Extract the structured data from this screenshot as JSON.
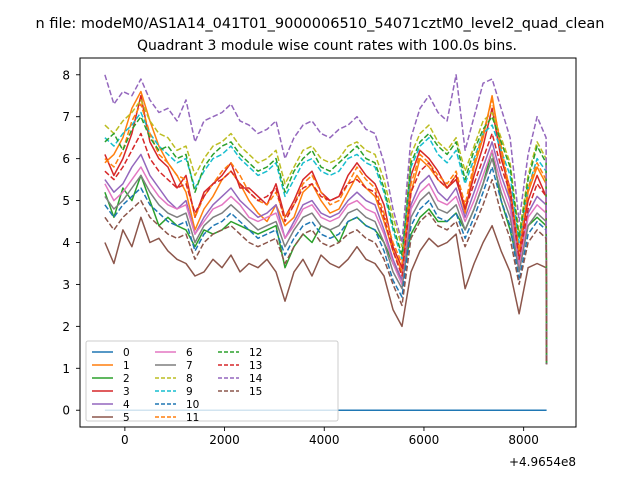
{
  "chart_data": {
    "type": "line",
    "suptitle": "n file: modeM0/AS1A14_041T01_9000006510_54071cztM0_level2_quad_clean",
    "title": "Quadrant 3 module wise count rates with 100.0s bins.",
    "xlabel": "",
    "ylabel": "",
    "x_offset_label": "+4.9654e8",
    "xlim": [
      -900,
      9050
    ],
    "ylim": [
      -0.4,
      8.4
    ],
    "xticks": [
      0,
      2000,
      4000,
      6000,
      8000
    ],
    "yticks": [
      0,
      1,
      2,
      3,
      4,
      5,
      6,
      7,
      8
    ],
    "x_range": [
      -400,
      8450
    ],
    "bin_seconds": 100,
    "grid": false,
    "legend_position": "lower-left",
    "legend_columns": 4,
    "series": [
      {
        "name": "0",
        "color": "#1f77b4",
        "dash": "solid",
        "values": [
          0,
          0,
          0,
          0,
          0,
          0,
          0,
          0,
          0,
          0,
          0,
          0,
          0,
          0,
          0,
          0,
          0,
          0,
          0,
          0,
          0,
          0,
          0,
          0,
          0,
          0,
          0,
          0,
          0,
          0,
          0,
          0,
          0,
          0,
          0,
          0,
          0,
          0,
          0,
          0,
          0,
          0,
          0,
          0,
          0,
          0,
          0,
          0,
          0,
          0
        ]
      },
      {
        "name": "1",
        "color": "#ff7f0e",
        "dash": "solid",
        "values": [
          5.9,
          6.1,
          6.5,
          7.2,
          7.6,
          6.9,
          6.3,
          5.9,
          5.6,
          5.2,
          4.3,
          4.8,
          5.1,
          5.5,
          5.7,
          5.4,
          5.0,
          4.7,
          4.5,
          4.9,
          4.4,
          4.6,
          5.2,
          5.4,
          5.0,
          4.7,
          4.8,
          5.2,
          5.6,
          5.3,
          5.1,
          4.5,
          3.8,
          3.3,
          5.2,
          6.0,
          5.8,
          5.5,
          5.3,
          5.6,
          4.7,
          5.8,
          6.5,
          7.5,
          6.2,
          5.0,
          3.6,
          5.2,
          5.8,
          5.4
        ]
      },
      {
        "name": "2",
        "color": "#2ca02c",
        "dash": "solid",
        "values": [
          5.2,
          4.6,
          5.3,
          5.0,
          5.6,
          5.0,
          4.4,
          4.6,
          4.4,
          4.3,
          3.9,
          4.3,
          4.2,
          4.3,
          4.5,
          4.4,
          4.3,
          4.2,
          4.3,
          4.4,
          3.4,
          3.9,
          4.2,
          4.0,
          4.4,
          4.3,
          4.0,
          4.5,
          4.6,
          4.4,
          4.3,
          4.0,
          3.5,
          3.1,
          4.2,
          4.6,
          4.8,
          4.5,
          4.5,
          4.7,
          4.3,
          4.8,
          5.4,
          6.2,
          5.0,
          4.3,
          3.4,
          4.4,
          4.6,
          4.4
        ]
      },
      {
        "name": "3",
        "color": "#d62728",
        "dash": "solid",
        "values": [
          6.1,
          5.6,
          6.0,
          6.6,
          7.5,
          6.4,
          6.0,
          5.8,
          5.3,
          5.6,
          4.6,
          5.2,
          5.4,
          5.6,
          5.9,
          5.3,
          5.3,
          5.1,
          4.9,
          5.4,
          4.6,
          5.0,
          5.5,
          5.7,
          5.2,
          5.0,
          5.1,
          5.6,
          5.9,
          5.6,
          5.4,
          4.9,
          3.9,
          3.4,
          5.6,
          6.2,
          6.0,
          5.7,
          5.3,
          5.5,
          4.8,
          5.6,
          6.3,
          7.2,
          6.0,
          5.3,
          3.8,
          5.0,
          5.6,
          5.1
        ]
      },
      {
        "name": "4",
        "color": "#9467bd",
        "dash": "solid",
        "values": [
          5.5,
          5.2,
          5.4,
          5.8,
          6.1,
          5.6,
          5.3,
          5.0,
          4.8,
          5.0,
          4.2,
          4.6,
          4.9,
          5.1,
          5.3,
          5.0,
          4.8,
          4.6,
          4.7,
          4.9,
          4.1,
          4.5,
          4.9,
          5.0,
          4.7,
          4.6,
          4.7,
          5.0,
          5.2,
          5.0,
          4.9,
          4.3,
          3.6,
          3.1,
          4.9,
          5.4,
          5.6,
          5.2,
          5.0,
          5.3,
          4.6,
          5.2,
          5.8,
          6.4,
          5.6,
          5.0,
          3.5,
          4.7,
          5.1,
          4.9
        ]
      },
      {
        "name": "5",
        "color": "#8c564b",
        "dash": "solid",
        "values": [
          4.0,
          3.5,
          4.3,
          3.9,
          4.6,
          4.0,
          4.1,
          3.8,
          3.6,
          3.5,
          3.2,
          3.3,
          3.6,
          3.4,
          3.7,
          3.3,
          3.5,
          3.4,
          3.6,
          3.3,
          2.6,
          3.3,
          3.6,
          3.2,
          3.7,
          3.5,
          3.4,
          3.6,
          3.9,
          3.6,
          3.5,
          3.2,
          2.4,
          2.0,
          3.3,
          3.8,
          4.1,
          3.9,
          4.0,
          4.2,
          2.9,
          3.5,
          4.0,
          4.4,
          3.8,
          3.3,
          2.3,
          3.4,
          3.5,
          3.4
        ]
      },
      {
        "name": "6",
        "color": "#e377c2",
        "dash": "solid",
        "values": [
          5.4,
          5.0,
          5.2,
          5.5,
          5.8,
          5.4,
          5.1,
          4.9,
          4.8,
          4.9,
          4.2,
          4.5,
          4.8,
          4.9,
          5.1,
          4.9,
          4.6,
          4.5,
          4.6,
          4.7,
          4.1,
          4.4,
          4.8,
          4.9,
          4.6,
          4.5,
          4.6,
          4.9,
          5.0,
          4.8,
          4.7,
          4.2,
          3.5,
          3.0,
          4.8,
          5.2,
          5.4,
          5.0,
          4.9,
          5.1,
          4.5,
          5.0,
          5.6,
          6.2,
          5.4,
          4.8,
          3.4,
          4.6,
          4.9,
          4.7
        ]
      },
      {
        "name": "7",
        "color": "#7f7f7f",
        "dash": "solid",
        "values": [
          5.1,
          4.8,
          5.0,
          5.3,
          5.6,
          5.2,
          4.9,
          4.7,
          4.6,
          4.7,
          4.0,
          4.4,
          4.6,
          4.7,
          4.9,
          4.7,
          4.5,
          4.3,
          4.4,
          4.5,
          3.9,
          4.3,
          4.6,
          4.7,
          4.4,
          4.3,
          4.4,
          4.7,
          4.8,
          4.6,
          4.5,
          4.0,
          3.3,
          2.9,
          4.6,
          5.0,
          5.2,
          4.8,
          4.7,
          4.9,
          4.3,
          4.8,
          5.4,
          6.0,
          5.2,
          4.6,
          3.3,
          4.4,
          4.7,
          4.5
        ]
      },
      {
        "name": "8",
        "color": "#bcbd22",
        "dash": "dashed",
        "values": [
          6.8,
          6.6,
          6.9,
          7.1,
          7.4,
          6.9,
          6.6,
          6.5,
          6.2,
          6.3,
          5.6,
          6.0,
          6.3,
          6.4,
          6.6,
          6.3,
          6.1,
          5.9,
          6.0,
          6.2,
          5.4,
          5.8,
          6.2,
          6.3,
          6.0,
          5.9,
          6.0,
          6.3,
          6.4,
          6.2,
          6.1,
          5.5,
          4.6,
          3.9,
          6.1,
          6.6,
          6.8,
          6.4,
          6.2,
          6.5,
          5.7,
          6.3,
          6.9,
          7.1,
          6.5,
          5.9,
          4.2,
          5.6,
          6.4,
          6.0
        ]
      },
      {
        "name": "9",
        "color": "#17becf",
        "dash": "dashed",
        "values": [
          6.5,
          6.3,
          6.6,
          6.8,
          7.1,
          6.6,
          6.3,
          6.1,
          5.9,
          6.0,
          5.3,
          5.7,
          6.0,
          6.1,
          6.3,
          6.0,
          5.8,
          5.6,
          5.7,
          5.9,
          5.1,
          5.5,
          5.9,
          6.0,
          5.7,
          5.6,
          5.7,
          6.0,
          6.1,
          5.9,
          5.8,
          5.2,
          4.3,
          3.6,
          5.8,
          6.3,
          6.5,
          6.1,
          5.9,
          6.2,
          5.4,
          6.0,
          6.6,
          6.8,
          6.2,
          5.6,
          4.0,
          5.3,
          6.0,
          5.7
        ]
      },
      {
        "name": "10",
        "color": "#1f77b4",
        "dash": "dashed",
        "values": [
          4.9,
          4.6,
          4.9,
          5.1,
          5.3,
          4.9,
          4.7,
          4.5,
          4.4,
          4.5,
          3.8,
          4.2,
          4.4,
          4.5,
          4.7,
          4.5,
          4.3,
          4.1,
          4.2,
          4.3,
          3.7,
          4.1,
          4.4,
          4.5,
          4.2,
          4.1,
          4.2,
          4.5,
          4.6,
          4.4,
          4.3,
          3.8,
          3.1,
          2.7,
          4.4,
          4.8,
          5.0,
          4.6,
          4.5,
          4.7,
          4.1,
          4.6,
          5.2,
          5.8,
          5.0,
          4.4,
          3.1,
          4.2,
          4.5,
          4.3
        ]
      },
      {
        "name": "11",
        "color": "#ff7f0e",
        "dash": "dashed",
        "values": [
          6.0,
          5.8,
          6.2,
          6.9,
          7.3,
          6.6,
          6.1,
          5.9,
          5.6,
          5.5,
          4.6,
          5.1,
          5.4,
          5.7,
          5.9,
          5.6,
          5.2,
          5.0,
          4.9,
          5.2,
          4.6,
          4.9,
          5.4,
          5.6,
          5.2,
          4.9,
          5.0,
          5.4,
          5.8,
          5.5,
          5.3,
          4.7,
          4.0,
          3.5,
          5.4,
          6.1,
          5.9,
          5.6,
          5.4,
          5.7,
          4.9,
          5.9,
          6.6,
          7.4,
          6.3,
          5.2,
          3.8,
          5.3,
          5.9,
          5.5
        ]
      },
      {
        "name": "12",
        "color": "#2ca02c",
        "dash": "dashed",
        "values": [
          6.4,
          6.6,
          6.2,
          6.7,
          7.0,
          6.5,
          6.2,
          6.3,
          6.0,
          6.1,
          5.2,
          5.8,
          6.1,
          6.3,
          6.4,
          6.1,
          5.9,
          5.7,
          5.8,
          6.0,
          5.2,
          5.7,
          6.0,
          6.2,
          5.8,
          5.7,
          5.9,
          6.1,
          6.3,
          6.0,
          5.9,
          5.3,
          4.4,
          3.7,
          5.9,
          6.4,
          6.6,
          6.3,
          6.1,
          6.4,
          5.5,
          6.2,
          6.7,
          7.0,
          6.4,
          5.8,
          4.1,
          5.5,
          6.3,
          5.9
        ]
      },
      {
        "name": "13",
        "color": "#d62728",
        "dash": "dashed",
        "values": [
          5.7,
          5.5,
          5.8,
          6.2,
          6.6,
          6.0,
          5.7,
          5.5,
          5.3,
          5.4,
          4.7,
          5.1,
          5.4,
          5.5,
          5.7,
          5.4,
          5.2,
          5.0,
          5.1,
          5.3,
          4.5,
          4.9,
          5.3,
          5.4,
          5.1,
          5.0,
          5.1,
          5.4,
          5.5,
          5.3,
          5.2,
          4.6,
          3.8,
          3.2,
          5.2,
          5.7,
          5.9,
          5.5,
          5.3,
          5.6,
          4.8,
          5.4,
          6.0,
          6.6,
          5.8,
          5.2,
          3.6,
          4.8,
          5.4,
          5.1
        ]
      },
      {
        "name": "14",
        "color": "#9467bd",
        "dash": "dashed",
        "values": [
          8.0,
          7.3,
          7.6,
          7.5,
          7.9,
          7.4,
          7.1,
          7.2,
          6.9,
          7.4,
          6.4,
          6.9,
          7.0,
          7.1,
          7.3,
          6.9,
          6.8,
          6.6,
          6.7,
          6.9,
          6.0,
          6.5,
          6.8,
          6.9,
          6.6,
          6.5,
          6.7,
          6.8,
          7.0,
          6.7,
          6.6,
          5.9,
          4.8,
          4.0,
          6.5,
          7.2,
          7.5,
          7.1,
          6.9,
          8.0,
          6.2,
          7.0,
          7.8,
          7.9,
          7.2,
          6.5,
          4.5,
          6.1,
          7.0,
          6.5
        ]
      },
      {
        "name": "15",
        "color": "#8c564b",
        "dash": "dashed",
        "values": [
          4.6,
          4.3,
          4.6,
          4.8,
          5.0,
          4.6,
          4.4,
          4.2,
          4.1,
          4.2,
          3.6,
          4.0,
          4.2,
          4.3,
          4.4,
          4.2,
          4.0,
          3.9,
          4.0,
          4.1,
          3.5,
          3.9,
          4.2,
          4.3,
          4.0,
          3.9,
          4.0,
          4.2,
          4.3,
          4.1,
          4.0,
          3.6,
          3.0,
          2.5,
          4.1,
          4.5,
          4.7,
          4.4,
          4.3,
          4.5,
          3.9,
          4.4,
          4.9,
          5.5,
          4.7,
          4.1,
          3.0,
          4.0,
          4.3,
          4.1
        ]
      }
    ]
  }
}
